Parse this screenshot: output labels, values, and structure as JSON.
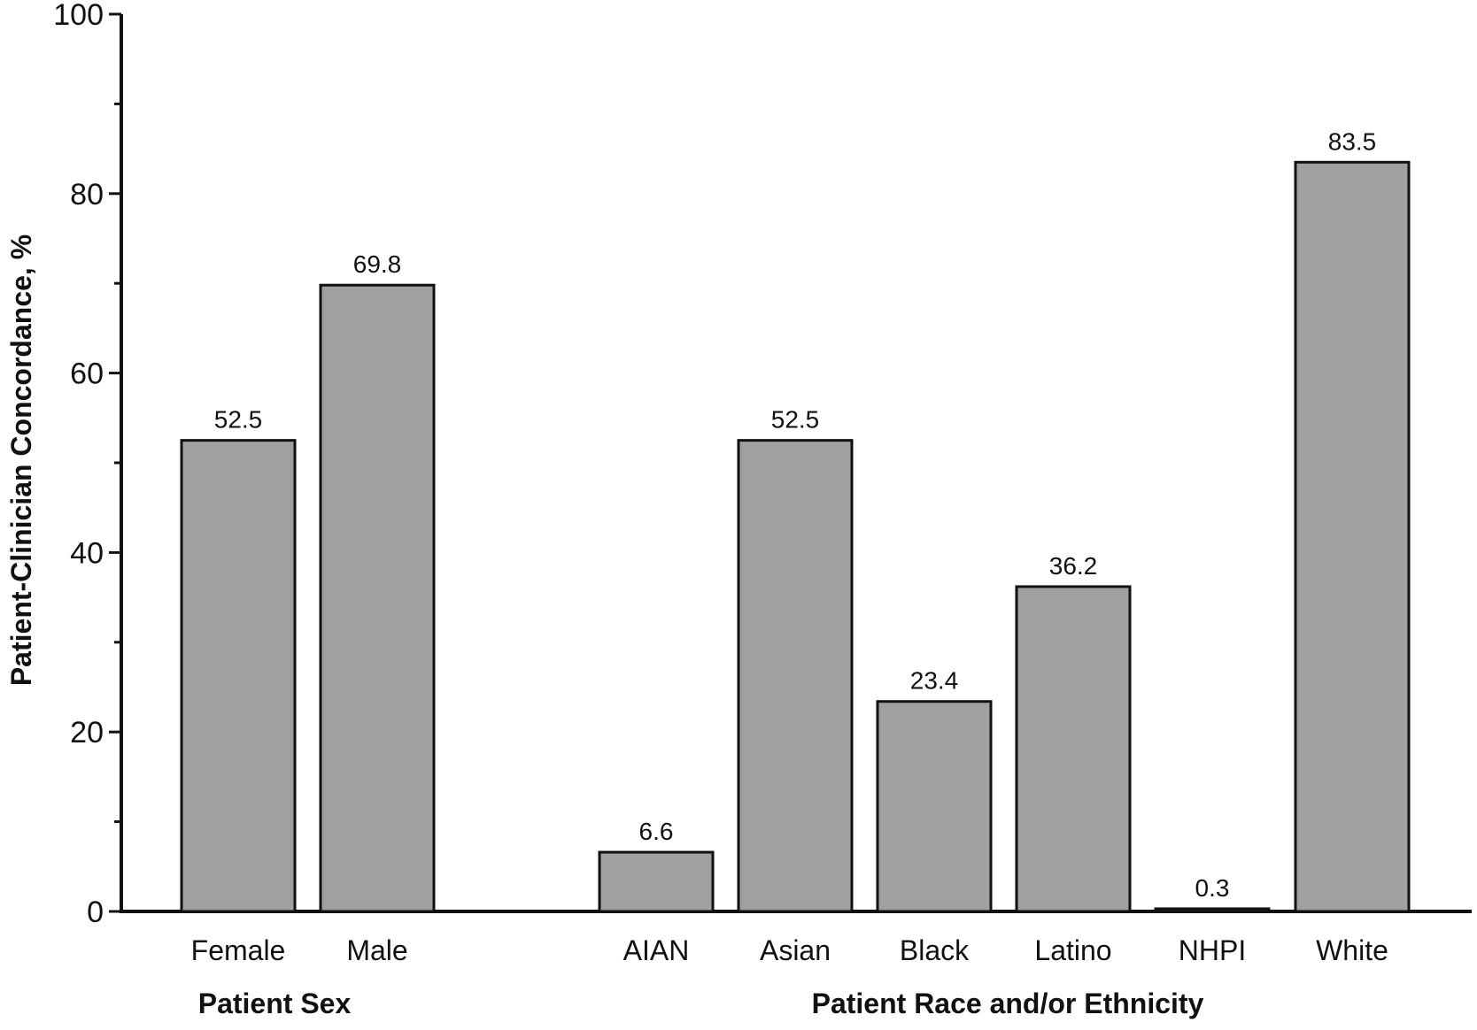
{
  "chart_data": {
    "type": "bar",
    "title": "",
    "ylabel": "Patient-Clinician Concordance, %",
    "ylim": [
      0,
      100
    ],
    "yticks": [
      0,
      20,
      40,
      60,
      80,
      100
    ],
    "grid": false,
    "legend": "none",
    "bar_color": "#a0a0a0",
    "bar_edge_color": "#111111",
    "groups": [
      {
        "label": "Patient Sex",
        "categories": [
          "Female",
          "Male"
        ],
        "values": [
          52.5,
          69.8
        ],
        "value_labels": [
          "52.5",
          "69.8"
        ]
      },
      {
        "label": "Patient Race and/or Ethnicity",
        "categories": [
          "AIAN",
          "Asian",
          "Black",
          "Latino",
          "NHPI",
          "White"
        ],
        "values": [
          6.6,
          52.5,
          23.4,
          36.2,
          0.3,
          83.5
        ],
        "value_labels": [
          "6.6",
          "52.5",
          "23.4",
          "36.2",
          "0.3",
          "83.5"
        ]
      }
    ]
  }
}
